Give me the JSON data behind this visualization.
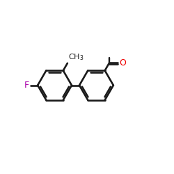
{
  "bg_color": "#ffffff",
  "bond_color": "#1a1a1a",
  "F_color": "#aa00aa",
  "O_color": "#ee0000",
  "figsize": [
    2.5,
    2.5
  ],
  "dpi": 100,
  "lc": [
    3.2,
    5.1
  ],
  "rc": [
    5.85,
    5.1
  ],
  "r": 1.0,
  "lw": 1.9
}
